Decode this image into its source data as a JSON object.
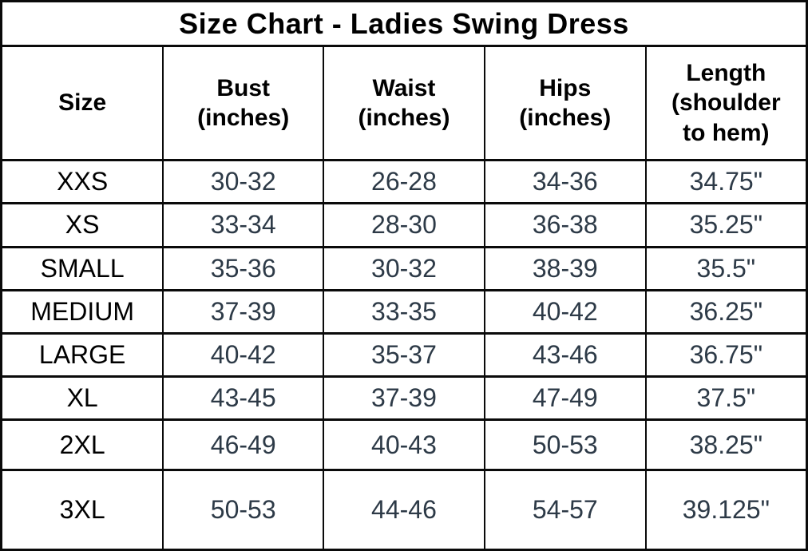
{
  "title": "Size Chart - Ladies Swing Dress",
  "colors": {
    "border": "#0a0a0a",
    "header_text": "#000000",
    "size_text": "#000000",
    "value_text": "#2d3a47",
    "background": "#ffffff"
  },
  "chart_data": {
    "type": "table",
    "title": "Size Chart - Ladies Swing Dress",
    "columns": [
      "Size",
      "Bust (inches)",
      "Waist (inches)",
      "Hips (inches)",
      "Length (shoulder to hem)"
    ],
    "rows": [
      [
        "XXS",
        "30-32",
        "26-28",
        "34-36",
        "34.75\""
      ],
      [
        "XS",
        "33-34",
        "28-30",
        "36-38",
        "35.25\""
      ],
      [
        "SMALL",
        "35-36",
        "30-32",
        "38-39",
        "35.5\""
      ],
      [
        "MEDIUM",
        "37-39",
        "33-35",
        "40-42",
        "36.25\""
      ],
      [
        "LARGE",
        "40-42",
        "35-37",
        "43-46",
        "36.75\""
      ],
      [
        "XL",
        "43-45",
        "37-39",
        "47-49",
        "37.5\""
      ],
      [
        "2XL",
        "46-49",
        "40-43",
        "50-53",
        "38.25\""
      ],
      [
        "3XL",
        "50-53",
        "44-46",
        "54-57",
        "39.125\""
      ]
    ]
  },
  "headers": {
    "size": "Size",
    "bust": "Bust\n(inches)",
    "waist": "Waist\n(inches)",
    "hips": "Hips\n(inches)",
    "length": "Length\n(shoulder\nto hem)"
  },
  "rows": [
    {
      "size": "XXS",
      "bust": "30-32",
      "waist": "26-28",
      "hips": "34-36",
      "length": "34.75\""
    },
    {
      "size": "XS",
      "bust": "33-34",
      "waist": "28-30",
      "hips": "36-38",
      "length": "35.25\""
    },
    {
      "size": "SMALL",
      "bust": "35-36",
      "waist": "30-32",
      "hips": "38-39",
      "length": "35.5\""
    },
    {
      "size": "MEDIUM",
      "bust": "37-39",
      "waist": "33-35",
      "hips": "40-42",
      "length": "36.25\""
    },
    {
      "size": "LARGE",
      "bust": "40-42",
      "waist": "35-37",
      "hips": "43-46",
      "length": "36.75\""
    },
    {
      "size": "XL",
      "bust": "43-45",
      "waist": "37-39",
      "hips": "47-49",
      "length": "37.5\""
    },
    {
      "size": "2XL",
      "bust": "46-49",
      "waist": "40-43",
      "hips": "50-53",
      "length": "38.25\""
    },
    {
      "size": "3XL",
      "bust": "50-53",
      "waist": "44-46",
      "hips": "54-57",
      "length": "39.125\""
    }
  ]
}
